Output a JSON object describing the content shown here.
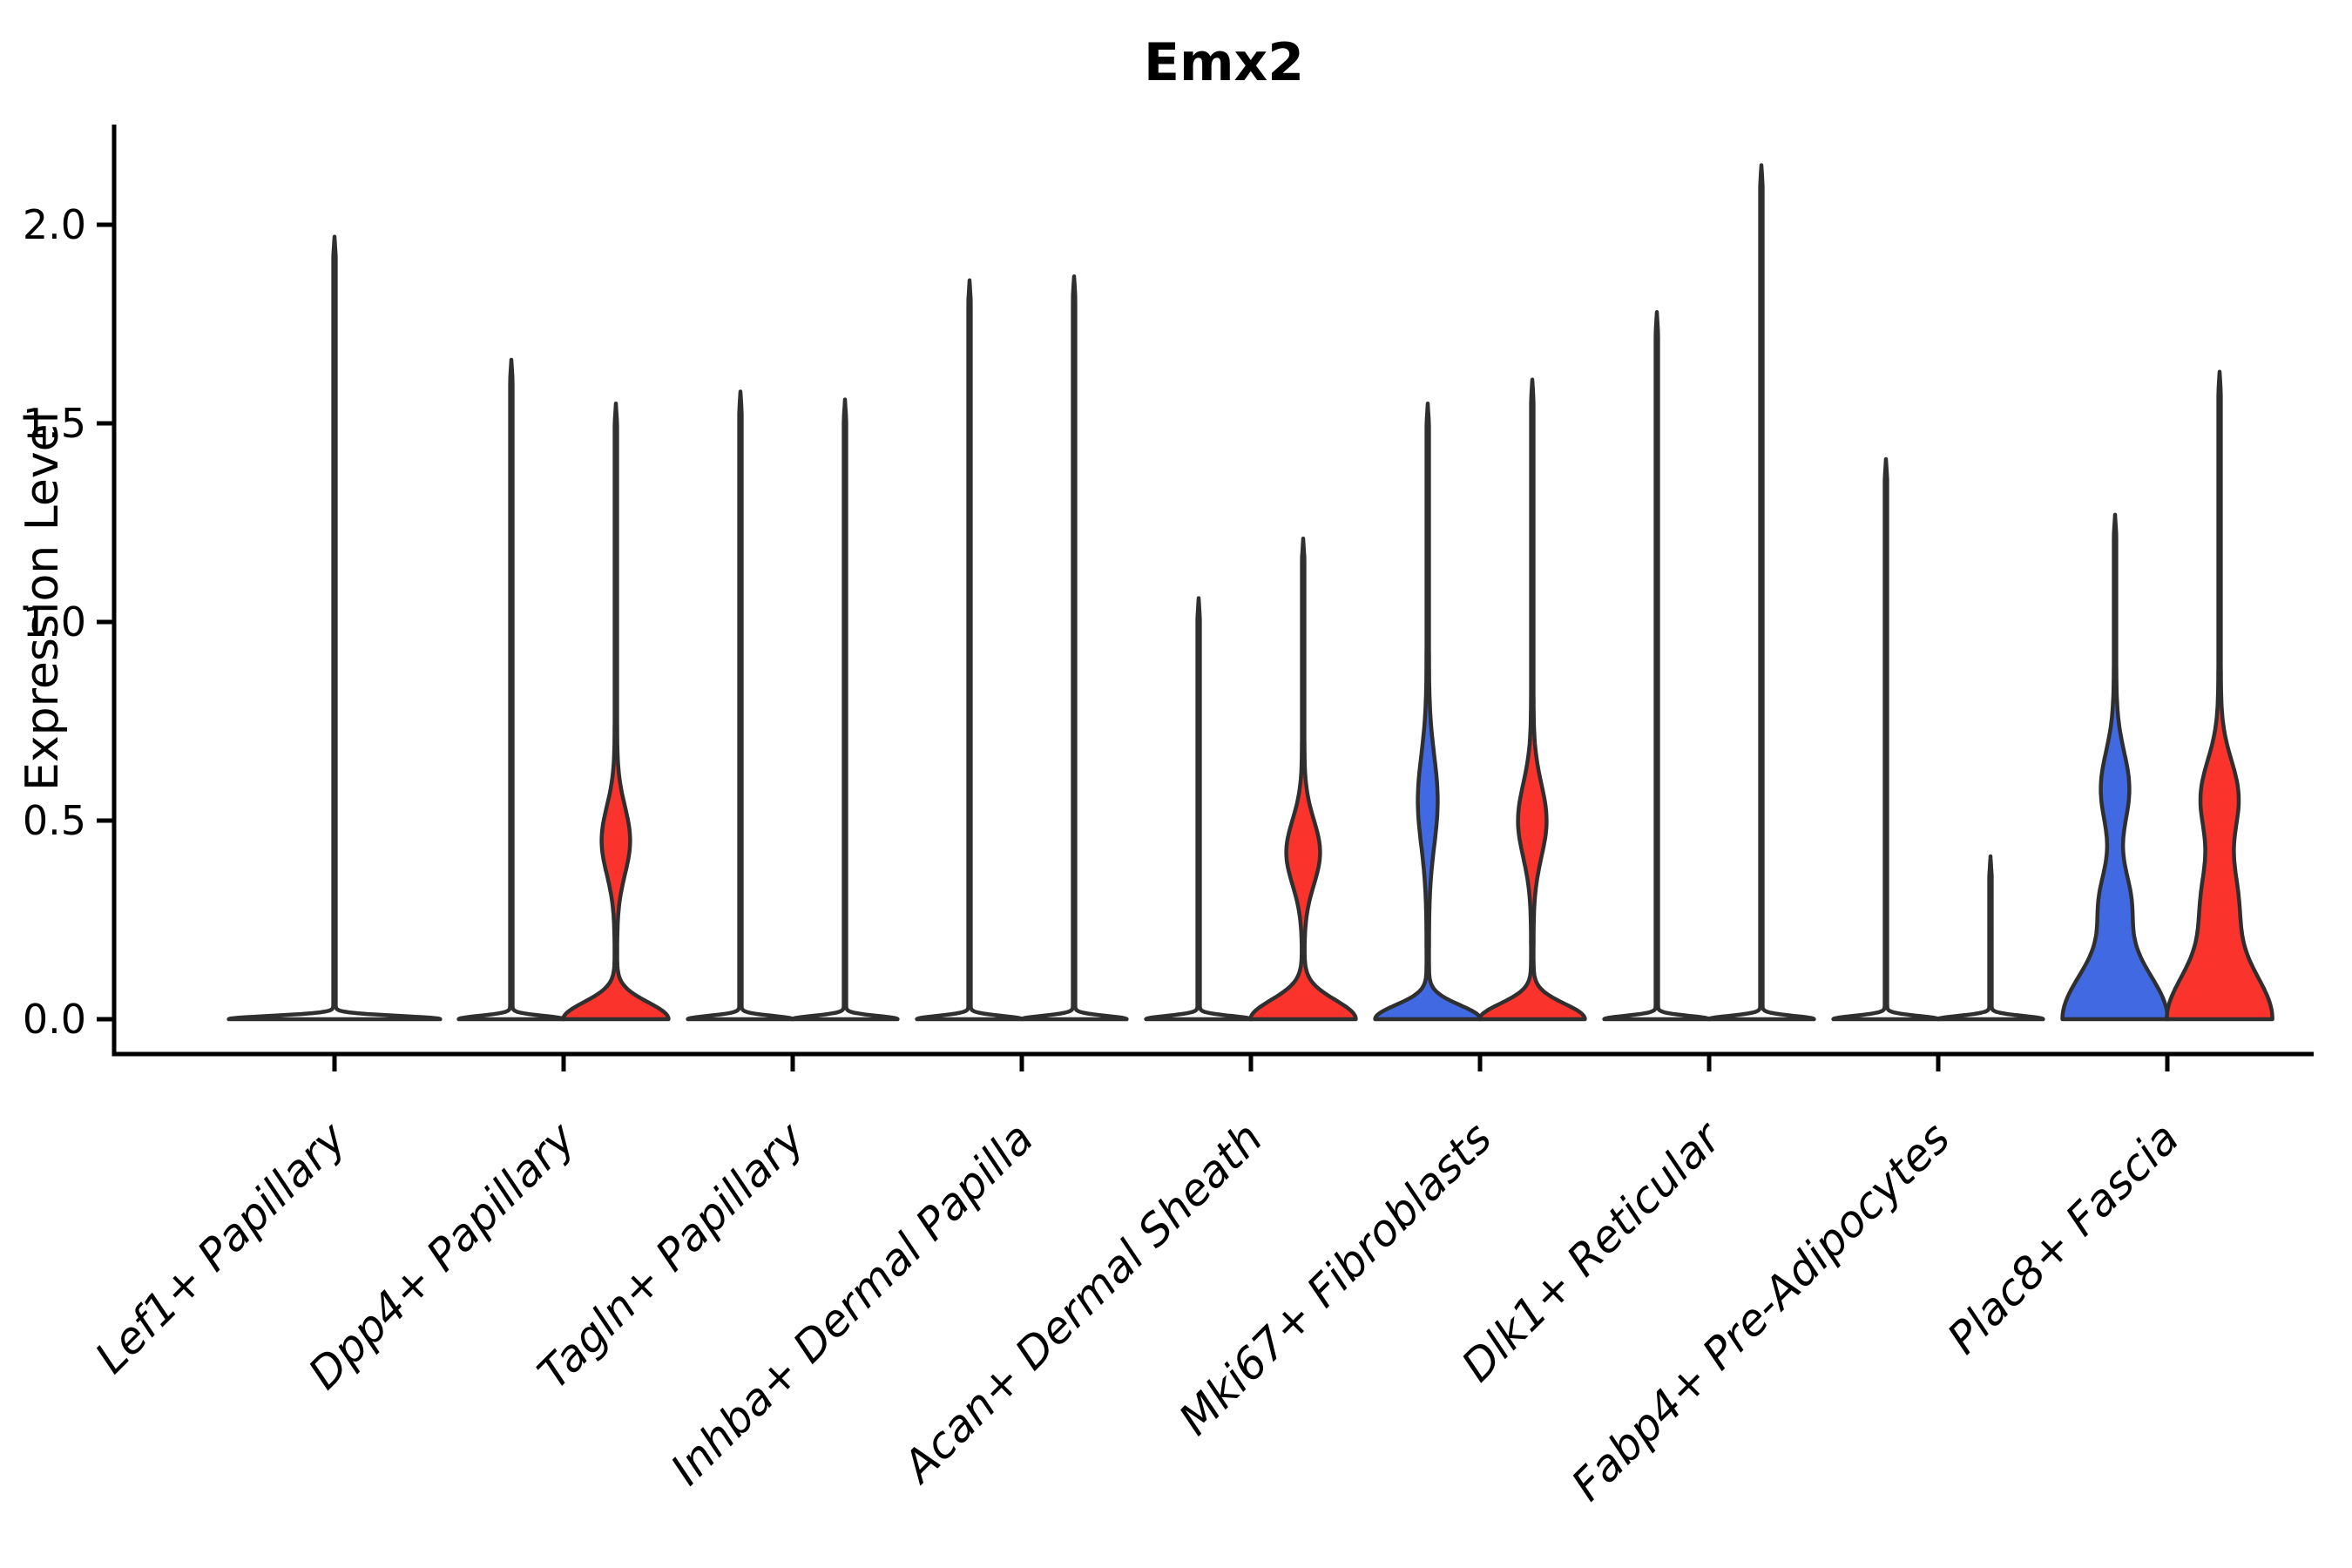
{
  "page": {
    "background": "#FFFFFF"
  },
  "chart_data": {
    "type": "violin",
    "title": "Emx2",
    "ylabel": "Expression Level",
    "xlabel": "",
    "grid": false,
    "legend": null,
    "ylim": [
      -0.09,
      2.26
    ],
    "yticks": [
      {
        "value": 0.0,
        "label": "0.0"
      },
      {
        "value": 0.5,
        "label": "0.5"
      },
      {
        "value": 1.0,
        "label": "1.0"
      },
      {
        "value": 1.5,
        "label": "1.5"
      },
      {
        "value": 2.0,
        "label": "2.0"
      }
    ],
    "colors": {
      "split_left_blue": "#4169E1",
      "split_right_red": "#FA332C",
      "violin_outline": "#2F2F2F",
      "axis": "#000000",
      "unfilled": "#FFFFFF"
    },
    "categories": [
      {
        "label": "Lef1+ Papillary",
        "violins": [
          {
            "side": "center",
            "fill": "#FFFFFF",
            "max": 1.97,
            "base": [
              120,
              0.012
            ],
            "bumps": [],
            "dots": []
          }
        ]
      },
      {
        "label": "Dpp4+ Papillary",
        "violins": [
          {
            "side": "left",
            "fill": "#FFFFFF",
            "max": 1.66,
            "base": [
              59,
              0.012
            ],
            "bumps": [],
            "dots": []
          },
          {
            "side": "right",
            "fill": "#FA332C",
            "max": 1.55,
            "base": [
              59,
              0.06
            ],
            "bumps": [
              [
                15,
                0.45,
                0.12
              ]
            ],
            "dots": []
          }
        ]
      },
      {
        "label": "Tagln+ Papillary",
        "violins": [
          {
            "side": "left",
            "fill": "#FFFFFF",
            "max": 1.58,
            "base": [
              59,
              0.012
            ],
            "bumps": [],
            "dots": []
          },
          {
            "side": "right",
            "fill": "#FFFFFF",
            "max": 1.56,
            "base": [
              59,
              0.012
            ],
            "bumps": [],
            "dots": []
          }
        ]
      },
      {
        "label": "Inhba+ Dermal Papilla",
        "violins": [
          {
            "side": "left",
            "fill": "#FFFFFF",
            "max": 1.86,
            "base": [
              59,
              0.012
            ],
            "bumps": [],
            "dots": []
          },
          {
            "side": "right",
            "fill": "#FFFFFF",
            "max": 1.87,
            "base": [
              59,
              0.012
            ],
            "bumps": [],
            "dots": []
          }
        ]
      },
      {
        "label": "Acan+ Dermal Sheath",
        "violins": [
          {
            "side": "left",
            "fill": "#FFFFFF",
            "max": 1.06,
            "base": [
              59,
              0.012
            ],
            "bumps": [],
            "dots": []
          },
          {
            "side": "right",
            "fill": "#FA332C",
            "max": 1.21,
            "base": [
              59,
              0.068
            ],
            "bumps": [
              [
                18,
                0.42,
                0.115
              ]
            ],
            "dots": []
          }
        ]
      },
      {
        "label": "Mki67+ Fibroblasts",
        "violins": [
          {
            "side": "left",
            "fill": "#4169E1",
            "max": 1.55,
            "base": [
              59,
              0.05
            ],
            "bumps": [
              [
                10,
                0.55,
                0.16
              ]
            ],
            "dots": []
          },
          {
            "side": "right",
            "fill": "#FA332C",
            "max": 1.61,
            "base": [
              59,
              0.055
            ],
            "bumps": [
              [
                15,
                0.5,
                0.13
              ]
            ],
            "dots": []
          }
        ]
      },
      {
        "label": "Dlk1+ Reticular",
        "violins": [
          {
            "side": "left",
            "fill": "#FFFFFF",
            "max": 1.78,
            "base": [
              59,
              0.012
            ],
            "bumps": [],
            "dots": []
          },
          {
            "side": "right",
            "fill": "#FFFFFF",
            "max": 2.15,
            "base": [
              59,
              0.012
            ],
            "bumps": [],
            "dots": []
          }
        ]
      },
      {
        "label": "Fabp4+ Pre-Adipocytes",
        "violins": [
          {
            "side": "left",
            "fill": "#FFFFFF",
            "max": 1.41,
            "base": [
              59,
              0.012
            ],
            "bumps": [],
            "dots": []
          },
          {
            "side": "right",
            "fill": "#FFFFFF",
            "max": 0.41,
            "base": [
              59,
              0.012
            ],
            "bumps": [],
            "dots": [
              0.32,
              0.22
            ]
          }
        ]
      },
      {
        "label": "Plac8+ Fascia",
        "violins": [
          {
            "side": "left",
            "fill": "#4169E1",
            "max": 1.27,
            "base": [
              59,
              0.17
            ],
            "bumps": [
              [
                15,
                0.3,
                0.11
              ],
              [
                15,
                0.58,
                0.13
              ]
            ],
            "dots": []
          },
          {
            "side": "right",
            "fill": "#FA332C",
            "max": 1.63,
            "base": [
              59,
              0.17
            ],
            "bumps": [
              [
                18,
                0.3,
                0.14
              ],
              [
                20,
                0.56,
                0.13
              ]
            ],
            "dots": []
          }
        ]
      }
    ]
  }
}
